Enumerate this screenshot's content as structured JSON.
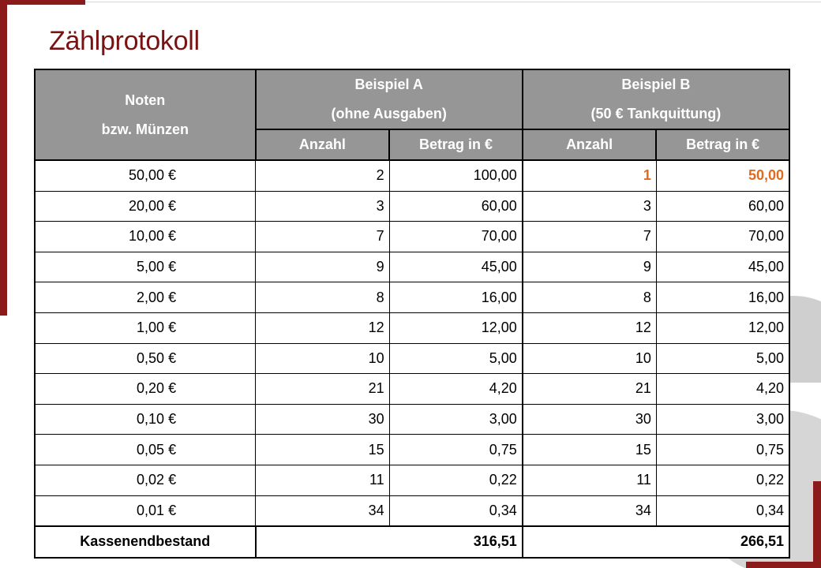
{
  "title": "Zählprotokoll",
  "colors": {
    "accent": "#8b1a1a",
    "header_bg": "#969696",
    "highlight": "#e06a1f"
  },
  "table": {
    "header": {
      "col0_line1": "Noten",
      "col0_line2": "bzw. Münzen",
      "groupA_line1": "Beispiel A",
      "groupA_line2": "(ohne Ausgaben)",
      "groupB_line1": "Beispiel B",
      "groupB_line2": "(50 € Tankquittung)",
      "sub": [
        "Anzahl",
        "Betrag in €",
        "Anzahl",
        "Betrag in €"
      ]
    },
    "rows": [
      {
        "denom": "50,00 €",
        "a_count": "2",
        "a_amount": "100,00",
        "b_count": "1",
        "b_amount": "50,00"
      },
      {
        "denom": "20,00 €",
        "a_count": "3",
        "a_amount": "60,00",
        "b_count": "3",
        "b_amount": "60,00"
      },
      {
        "denom": "10,00 €",
        "a_count": "7",
        "a_amount": "70,00",
        "b_count": "7",
        "b_amount": "70,00"
      },
      {
        "denom": "5,00 €",
        "a_count": "9",
        "a_amount": "45,00",
        "b_count": "9",
        "b_amount": "45,00"
      },
      {
        "denom": "2,00 €",
        "a_count": "8",
        "a_amount": "16,00",
        "b_count": "8",
        "b_amount": "16,00"
      },
      {
        "denom": "1,00 €",
        "a_count": "12",
        "a_amount": "12,00",
        "b_count": "12",
        "b_amount": "12,00"
      },
      {
        "denom": "0,50 €",
        "a_count": "10",
        "a_amount": "5,00",
        "b_count": "10",
        "b_amount": "5,00"
      },
      {
        "denom": "0,20 €",
        "a_count": "21",
        "a_amount": "4,20",
        "b_count": "21",
        "b_amount": "4,20"
      },
      {
        "denom": "0,10 €",
        "a_count": "30",
        "a_amount": "3,00",
        "b_count": "30",
        "b_amount": "3,00"
      },
      {
        "denom": "0,05 €",
        "a_count": "15",
        "a_amount": "0,75",
        "b_count": "15",
        "b_amount": "0,75"
      },
      {
        "denom": "0,02 €",
        "a_count": "11",
        "a_amount": "0,22",
        "b_count": "11",
        "b_amount": "0,22"
      },
      {
        "denom": "0,01 €",
        "a_count": "34",
        "a_amount": "0,34",
        "b_count": "34",
        "b_amount": "0,34"
      }
    ],
    "total": {
      "label": "Kassenendbestand",
      "a_total": "316,51",
      "b_total": "266,51"
    }
  }
}
